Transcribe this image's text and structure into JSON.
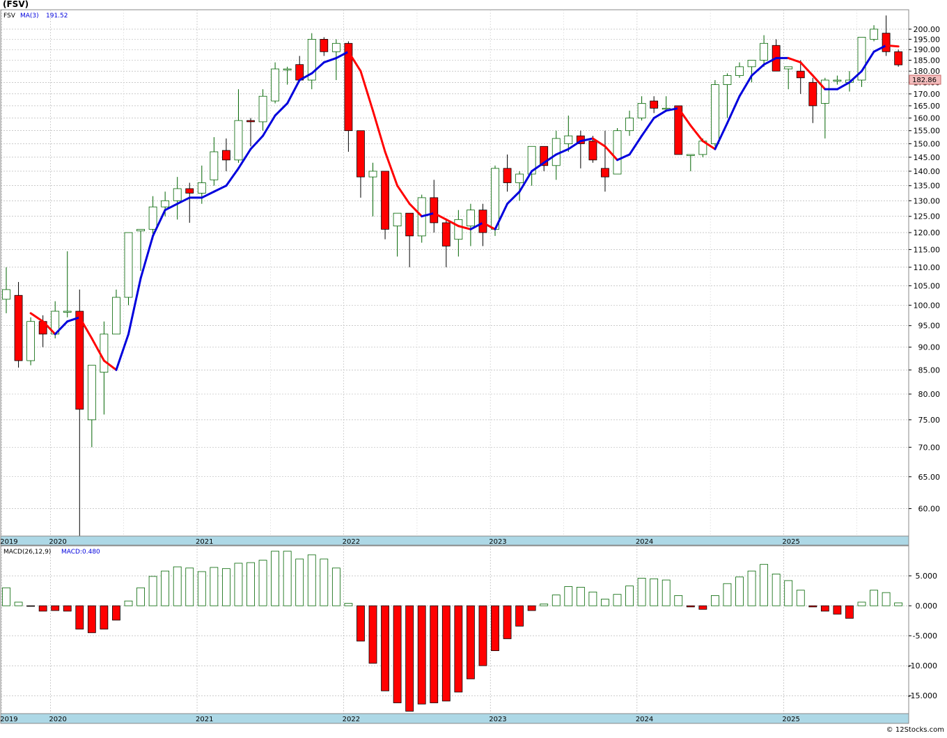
{
  "header": {
    "ticker": "(FSV)",
    "price_series_label": "FSV",
    "ma_label": "MA(3)",
    "ma_value": "191.52",
    "last_price": "182.86"
  },
  "macd_header": {
    "label": "MACD(26,12,9)",
    "value": "MACD:0.480"
  },
  "watermark": "© 12Stocks.com",
  "colors": {
    "up": "#006400",
    "down": "#ff0000",
    "ma_up": "#0000dd",
    "ma_down": "#ff0000",
    "axis_band": "#add8e6",
    "grid": "#aaaaaa"
  },
  "chart_data": [
    {
      "type": "candlestick",
      "interval": "monthly",
      "y_scale": "log",
      "ylim": [
        56,
        210
      ],
      "y_ticks": [
        60,
        65,
        70,
        75,
        80,
        85,
        90,
        95,
        100,
        105,
        110,
        115,
        120,
        125,
        130,
        135,
        140,
        145,
        150,
        155,
        160,
        165,
        170,
        175,
        180,
        185,
        190,
        195,
        200
      ],
      "y_tick_labels": [
        "60.00",
        "65.00",
        "70.00",
        "75.00",
        "80.00",
        "85.00",
        "90.00",
        "95.00",
        "100.00",
        "105.00",
        "110.00",
        "115.00",
        "120.00",
        "125.00",
        "130.00",
        "135.00",
        "140.00",
        "145.00",
        "150.00",
        "155.00",
        "160.00",
        "165.00",
        "170.00",
        "175.00",
        "180.00",
        "185.00",
        "190.00",
        "195.00",
        "200.00"
      ],
      "year_labels": [
        {
          "label": "2019",
          "index": 0
        },
        {
          "label": "2020",
          "index": 4
        },
        {
          "label": "2021",
          "index": 16
        },
        {
          "label": "2022",
          "index": 28
        },
        {
          "label": "2023",
          "index": 40
        },
        {
          "label": "2024",
          "index": 52
        },
        {
          "label": "2025",
          "index": 64
        }
      ],
      "candles": [
        {
          "o": 101.5,
          "h": 110,
          "l": 98,
          "c": 104
        },
        {
          "o": 102.5,
          "h": 106,
          "l": 85.5,
          "c": 87
        },
        {
          "o": 87,
          "h": 97,
          "l": 86,
          "c": 96
        },
        {
          "o": 96,
          "h": 97.5,
          "l": 90,
          "c": 93
        },
        {
          "o": 93,
          "h": 101,
          "l": 92,
          "c": 98.5
        },
        {
          "o": 98.5,
          "h": 114.5,
          "l": 97,
          "c": 98.5
        },
        {
          "o": 98.5,
          "h": 104,
          "l": 56,
          "c": 77
        },
        {
          "o": 75,
          "h": 86,
          "l": 70,
          "c": 86
        },
        {
          "o": 84.5,
          "h": 96,
          "l": 76,
          "c": 93
        },
        {
          "o": 93,
          "h": 104,
          "l": 93,
          "c": 102
        },
        {
          "o": 102,
          "h": 120,
          "l": 100,
          "c": 120
        },
        {
          "o": 120.5,
          "h": 121,
          "l": 109,
          "c": 121
        },
        {
          "o": 121,
          "h": 131.5,
          "l": 118,
          "c": 128
        },
        {
          "o": 128,
          "h": 133,
          "l": 125,
          "c": 130
        },
        {
          "o": 130,
          "h": 138,
          "l": 124,
          "c": 134
        },
        {
          "o": 134,
          "h": 136,
          "l": 123,
          "c": 132.5
        },
        {
          "o": 132.5,
          "h": 142,
          "l": 129,
          "c": 136
        },
        {
          "o": 137,
          "h": 152.5,
          "l": 135,
          "c": 147
        },
        {
          "o": 147.5,
          "h": 152,
          "l": 140,
          "c": 144
        },
        {
          "o": 144,
          "h": 172,
          "l": 143,
          "c": 159
        },
        {
          "o": 159,
          "h": 160,
          "l": 149,
          "c": 158.5
        },
        {
          "o": 158.5,
          "h": 172,
          "l": 155,
          "c": 169
        },
        {
          "o": 167,
          "h": 184,
          "l": 166,
          "c": 181
        },
        {
          "o": 181,
          "h": 182,
          "l": 174,
          "c": 181
        },
        {
          "o": 183,
          "h": 187,
          "l": 176,
          "c": 176
        },
        {
          "o": 176,
          "h": 198,
          "l": 172,
          "c": 195
        },
        {
          "o": 195,
          "h": 196,
          "l": 187,
          "c": 189
        },
        {
          "o": 189,
          "h": 195,
          "l": 176,
          "c": 193
        },
        {
          "o": 193,
          "h": 194,
          "l": 147,
          "c": 155
        },
        {
          "o": 155,
          "h": 155,
          "l": 131,
          "c": 138
        },
        {
          "o": 138,
          "h": 143,
          "l": 125,
          "c": 140
        },
        {
          "o": 140,
          "h": 140,
          "l": 118,
          "c": 121
        },
        {
          "o": 122,
          "h": 126,
          "l": 113,
          "c": 126
        },
        {
          "o": 126,
          "h": 126,
          "l": 110,
          "c": 119
        },
        {
          "o": 119,
          "h": 132,
          "l": 117,
          "c": 131
        },
        {
          "o": 131,
          "h": 137,
          "l": 120,
          "c": 123
        },
        {
          "o": 123,
          "h": 124,
          "l": 110,
          "c": 116
        },
        {
          "o": 118,
          "h": 127,
          "l": 113,
          "c": 124
        },
        {
          "o": 122,
          "h": 129,
          "l": 116,
          "c": 127
        },
        {
          "o": 127,
          "h": 129,
          "l": 116,
          "c": 120
        },
        {
          "o": 121,
          "h": 142,
          "l": 119,
          "c": 141
        },
        {
          "o": 141,
          "h": 146,
          "l": 133,
          "c": 136
        },
        {
          "o": 136,
          "h": 140,
          "l": 130,
          "c": 139
        },
        {
          "o": 139,
          "h": 149,
          "l": 135,
          "c": 149
        },
        {
          "o": 149,
          "h": 149,
          "l": 140,
          "c": 142
        },
        {
          "o": 142,
          "h": 155,
          "l": 137,
          "c": 152
        },
        {
          "o": 150,
          "h": 161,
          "l": 147,
          "c": 153
        },
        {
          "o": 153,
          "h": 155,
          "l": 141,
          "c": 150
        },
        {
          "o": 151,
          "h": 153,
          "l": 143,
          "c": 144
        },
        {
          "o": 141,
          "h": 155,
          "l": 133,
          "c": 138
        },
        {
          "o": 139,
          "h": 156,
          "l": 139,
          "c": 155
        },
        {
          "o": 155,
          "h": 163,
          "l": 153,
          "c": 160
        },
        {
          "o": 160,
          "h": 169,
          "l": 159,
          "c": 166
        },
        {
          "o": 167,
          "h": 169,
          "l": 162,
          "c": 164
        },
        {
          "o": 164,
          "h": 169,
          "l": 163,
          "c": 164
        },
        {
          "o": 165,
          "h": 165,
          "l": 146,
          "c": 146
        },
        {
          "o": 146,
          "h": 146,
          "l": 140,
          "c": 146
        },
        {
          "o": 146,
          "h": 152,
          "l": 145,
          "c": 151
        },
        {
          "o": 150,
          "h": 176,
          "l": 149,
          "c": 174
        },
        {
          "o": 174,
          "h": 179,
          "l": 160,
          "c": 178
        },
        {
          "o": 178,
          "h": 184,
          "l": 177,
          "c": 182
        },
        {
          "o": 182,
          "h": 185,
          "l": 175,
          "c": 185
        },
        {
          "o": 185,
          "h": 197,
          "l": 182,
          "c": 193
        },
        {
          "o": 192,
          "h": 195,
          "l": 180,
          "c": 180
        },
        {
          "o": 181,
          "h": 182,
          "l": 172,
          "c": 182
        },
        {
          "o": 180,
          "h": 185,
          "l": 170,
          "c": 177
        },
        {
          "o": 175,
          "h": 177,
          "l": 158,
          "c": 165
        },
        {
          "o": 166,
          "h": 177,
          "l": 152,
          "c": 176
        },
        {
          "o": 176,
          "h": 178,
          "l": 174,
          "c": 176
        },
        {
          "o": 175,
          "h": 180,
          "l": 171,
          "c": 176
        },
        {
          "o": 176,
          "h": 196,
          "l": 173,
          "c": 196
        },
        {
          "o": 195,
          "h": 202,
          "l": 194,
          "c": 200
        },
        {
          "o": 198,
          "h": 207,
          "l": 187,
          "c": 189
        },
        {
          "o": 189,
          "h": 190,
          "l": 182,
          "c": 182.86
        }
      ],
      "ma3": [
        null,
        null,
        98,
        96,
        93,
        96,
        97,
        92,
        87,
        85,
        93,
        107,
        119,
        127,
        129,
        131,
        131,
        133,
        135,
        141,
        148,
        153,
        161,
        166,
        176,
        179,
        184,
        186,
        189,
        180,
        163,
        147,
        135,
        129,
        125,
        126,
        124,
        122,
        121,
        123,
        121,
        129,
        133,
        140,
        143,
        146,
        148,
        151,
        152,
        149,
        144,
        146,
        153,
        160,
        163,
        164,
        157,
        151,
        148,
        158,
        169,
        178,
        183,
        186,
        186,
        184,
        178,
        172,
        172,
        175,
        180,
        189,
        192,
        191.52
      ]
    },
    {
      "type": "bar",
      "name": "MACD",
      "ylim": [
        -18,
        10
      ],
      "y_ticks": [
        -15,
        -10,
        -5,
        0,
        5
      ],
      "y_tick_labels": [
        "-15.000",
        "-10.000",
        "-5.000",
        "0.000",
        "5.000"
      ],
      "values": [
        3,
        0.6,
        -0.1,
        -0.9,
        -0.8,
        -0.9,
        -3.9,
        -4.5,
        -3.9,
        -2.4,
        0.8,
        3,
        4.9,
        5.8,
        6.5,
        6.3,
        5.7,
        6.4,
        6.2,
        7.1,
        7.2,
        7.6,
        9.1,
        9.1,
        7.8,
        8.5,
        7.8,
        6.3,
        0.4,
        -5.9,
        -9.6,
        -14.2,
        -16.2,
        -17.6,
        -16.4,
        -16.2,
        -15.9,
        -14.4,
        -12.2,
        -10,
        -7.5,
        -5.5,
        -3.4,
        -0.8,
        0.3,
        1.8,
        3.2,
        3.1,
        2.3,
        1.1,
        1.9,
        3.3,
        4.6,
        4.5,
        4.3,
        1.7,
        -0.2,
        -0.6,
        1.7,
        3.7,
        4.8,
        5.8,
        6.9,
        5.3,
        4.2,
        2.6,
        -0.2,
        -0.9,
        -1.4,
        -2.1,
        0.6,
        2.6,
        2.2,
        0.48
      ]
    }
  ]
}
